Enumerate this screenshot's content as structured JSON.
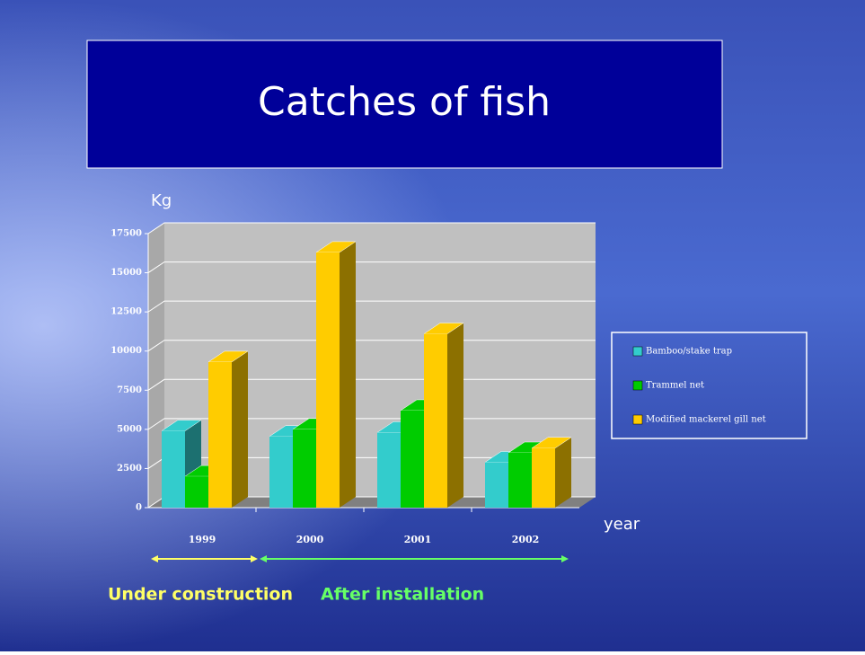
{
  "title": "Catches of fish",
  "chart_data": {
    "type": "bar3d",
    "y_label": "Kg",
    "x_label": "year",
    "categories": [
      "1999",
      "2000",
      "2001",
      "2002"
    ],
    "series": [
      {
        "name": "Bamboo/stake trap",
        "color": "#33cccc",
        "values": [
          4900,
          4550,
          4800,
          2900
        ]
      },
      {
        "name": "Trammel net",
        "color": "#00cc00",
        "values": [
          2000,
          5000,
          6200,
          3500
        ]
      },
      {
        "name": "Modified mackerel gill net",
        "color": "#ffcc00",
        "values": [
          9300,
          16300,
          11100,
          3800
        ]
      }
    ],
    "ylim": [
      0,
      17500
    ],
    "yticks": [
      0,
      2500,
      5000,
      7500,
      10000,
      12500,
      15000,
      17500
    ],
    "grid": true,
    "legend": "right"
  },
  "annotations": [
    "Under construction",
    "After installation"
  ]
}
